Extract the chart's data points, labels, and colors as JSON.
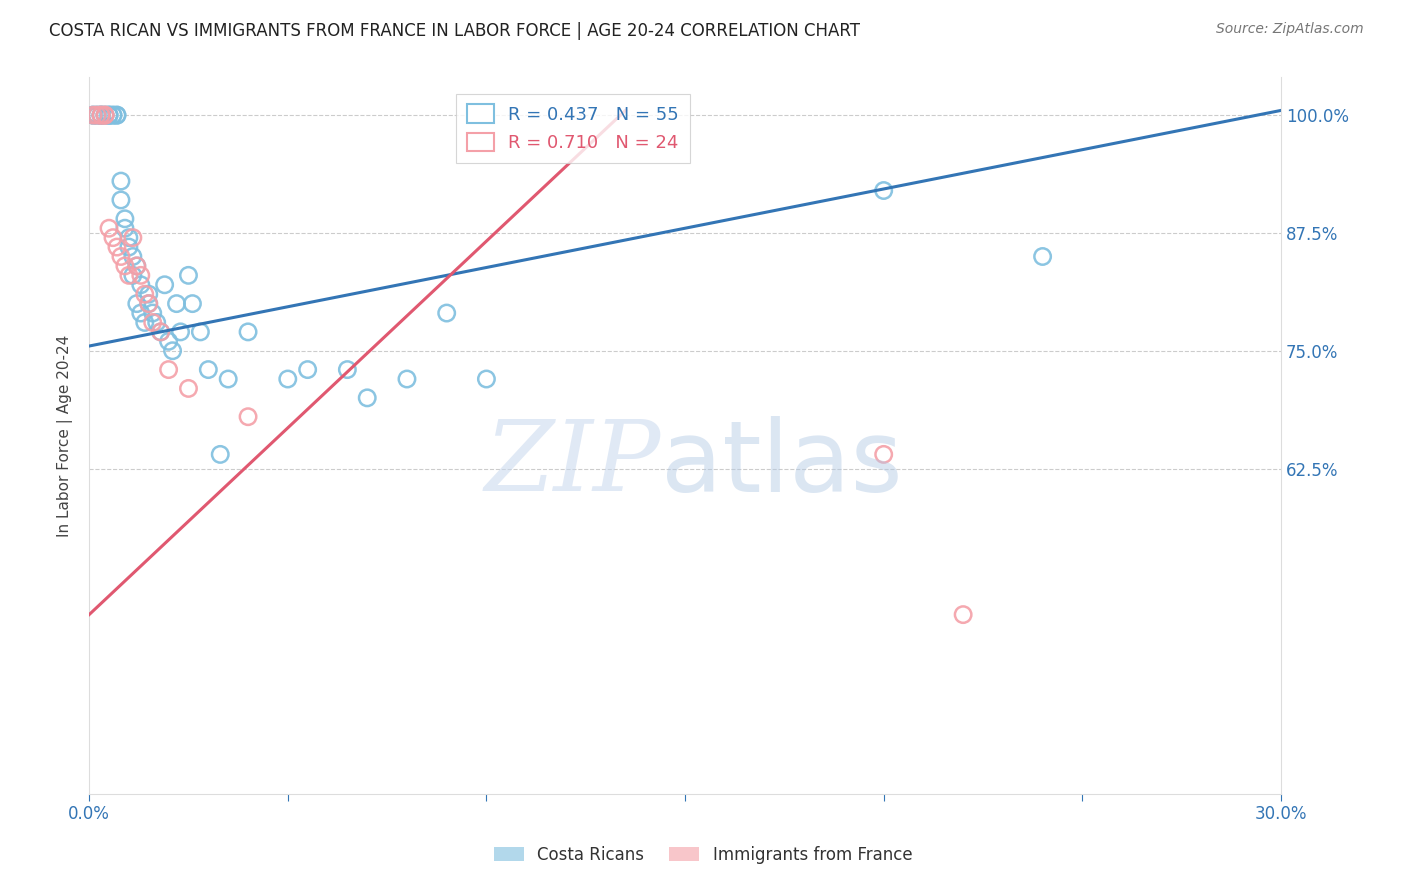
{
  "title": "COSTA RICAN VS IMMIGRANTS FROM FRANCE IN LABOR FORCE | AGE 20-24 CORRELATION CHART",
  "source": "Source: ZipAtlas.com",
  "ylabel": "In Labor Force | Age 20-24",
  "xmin": 0.0,
  "xmax": 0.3,
  "ymin": 0.28,
  "ymax": 1.04,
  "yticks": [
    0.625,
    0.75,
    0.875,
    1.0
  ],
  "ytick_labels": [
    "62.5%",
    "75.0%",
    "87.5%",
    "100.0%"
  ],
  "blue_color": "#7fbfdf",
  "pink_color": "#f4a0a8",
  "blue_line_color": "#3375b5",
  "pink_line_color": "#e05870",
  "blue_line_x0": 0.0,
  "blue_line_y0": 0.755,
  "blue_line_x1": 0.3,
  "blue_line_y1": 1.005,
  "pink_line_x0": 0.0,
  "pink_line_y0": 0.47,
  "pink_line_x1": 0.135,
  "pink_line_y1": 1.005,
  "legend_blue_label": "R = 0.437   N = 55",
  "legend_pink_label": "R = 0.710   N = 24",
  "watermark_zip": "ZIP",
  "watermark_atlas": "atlas",
  "background_color": "#ffffff",
  "costa_rica_x": [
    0.001,
    0.001,
    0.002,
    0.002,
    0.003,
    0.003,
    0.003,
    0.004,
    0.004,
    0.005,
    0.005,
    0.005,
    0.006,
    0.006,
    0.007,
    0.007,
    0.008,
    0.008,
    0.009,
    0.009,
    0.01,
    0.01,
    0.011,
    0.011,
    0.012,
    0.012,
    0.013,
    0.013,
    0.014,
    0.015,
    0.015,
    0.016,
    0.017,
    0.018,
    0.019,
    0.02,
    0.021,
    0.022,
    0.023,
    0.025,
    0.026,
    0.028,
    0.03,
    0.033,
    0.035,
    0.04,
    0.05,
    0.055,
    0.065,
    0.07,
    0.08,
    0.09,
    0.1,
    0.2,
    0.24
  ],
  "costa_rica_y": [
    1.0,
    1.0,
    1.0,
    1.0,
    1.0,
    1.0,
    1.0,
    1.0,
    1.0,
    1.0,
    1.0,
    1.0,
    1.0,
    1.0,
    1.0,
    1.0,
    0.93,
    0.91,
    0.89,
    0.88,
    0.87,
    0.86,
    0.85,
    0.83,
    0.84,
    0.8,
    0.82,
    0.79,
    0.78,
    0.81,
    0.8,
    0.79,
    0.78,
    0.77,
    0.82,
    0.76,
    0.75,
    0.8,
    0.77,
    0.83,
    0.8,
    0.77,
    0.73,
    0.64,
    0.72,
    0.77,
    0.72,
    0.73,
    0.73,
    0.7,
    0.72,
    0.79,
    0.72,
    0.92,
    0.85
  ],
  "france_x": [
    0.001,
    0.002,
    0.003,
    0.003,
    0.004,
    0.004,
    0.005,
    0.006,
    0.007,
    0.008,
    0.009,
    0.01,
    0.011,
    0.012,
    0.013,
    0.014,
    0.015,
    0.016,
    0.018,
    0.02,
    0.025,
    0.04,
    0.2,
    0.22
  ],
  "france_y": [
    1.0,
    1.0,
    1.0,
    1.0,
    1.0,
    1.0,
    0.88,
    0.87,
    0.86,
    0.85,
    0.84,
    0.83,
    0.87,
    0.84,
    0.83,
    0.81,
    0.8,
    0.78,
    0.77,
    0.73,
    0.71,
    0.68,
    0.64,
    0.47
  ]
}
